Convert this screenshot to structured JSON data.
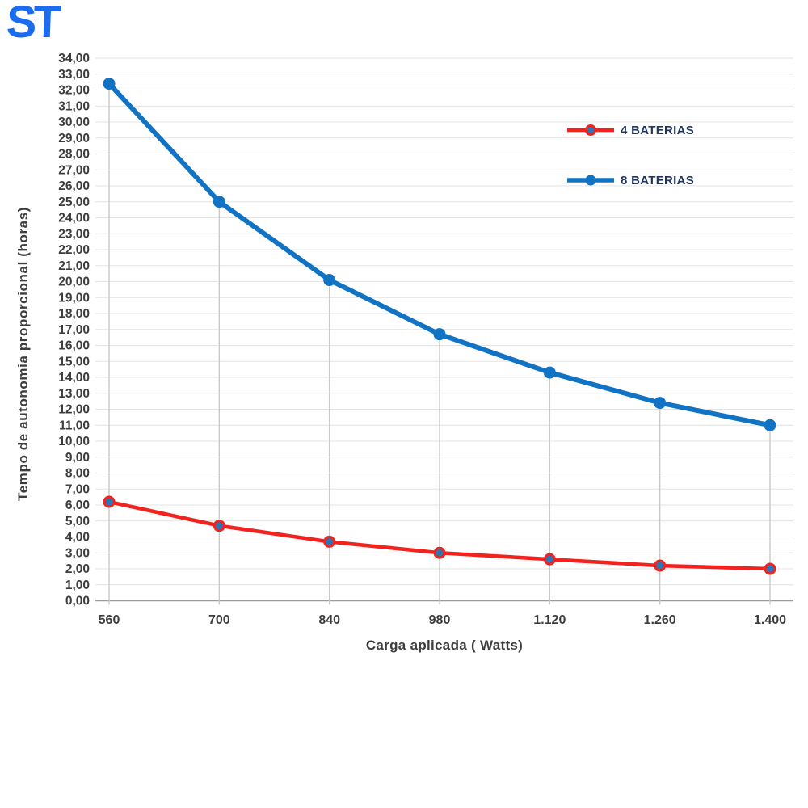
{
  "logo": {
    "text": "ST",
    "color": "#1b6cf0"
  },
  "chart_data": {
    "type": "line",
    "title": "",
    "xlabel": "Carga aplicada ( Watts)",
    "ylabel": "Tempo de autonomia proporcional (horas)",
    "categories": [
      "560",
      "700",
      "840",
      "980",
      "1.120",
      "1.260",
      "1.400"
    ],
    "x_values_watts": [
      560,
      700,
      840,
      980,
      1120,
      1260,
      1400
    ],
    "ylim": [
      0,
      34
    ],
    "ytick_step": 1,
    "ytick_decimal_separator": ",",
    "grid": "horizontal",
    "legend_position": "inside-top-right",
    "series": [
      {
        "name": "4 BATERIAS",
        "color": "#f2231f",
        "marker_fill": "#2e75b6",
        "marker_ring": "#f2231f",
        "values": [
          6.2,
          4.7,
          3.7,
          3.0,
          2.6,
          2.2,
          2.0
        ]
      },
      {
        "name": "8 BATERIAS",
        "color": "#1173c4",
        "marker_fill": "#1173c4",
        "drop_lines": true,
        "values": [
          32.4,
          25.0,
          20.1,
          16.7,
          14.3,
          12.4,
          11.0
        ]
      }
    ],
    "colors": {
      "grid": "#e3e3e3",
      "axis_line": "#9a9a9a",
      "drop_line": "#c9c9c9",
      "tick_label": "#3d3d3d",
      "axis_title": "#3d3d3d",
      "legend_text": "#20365c"
    }
  }
}
